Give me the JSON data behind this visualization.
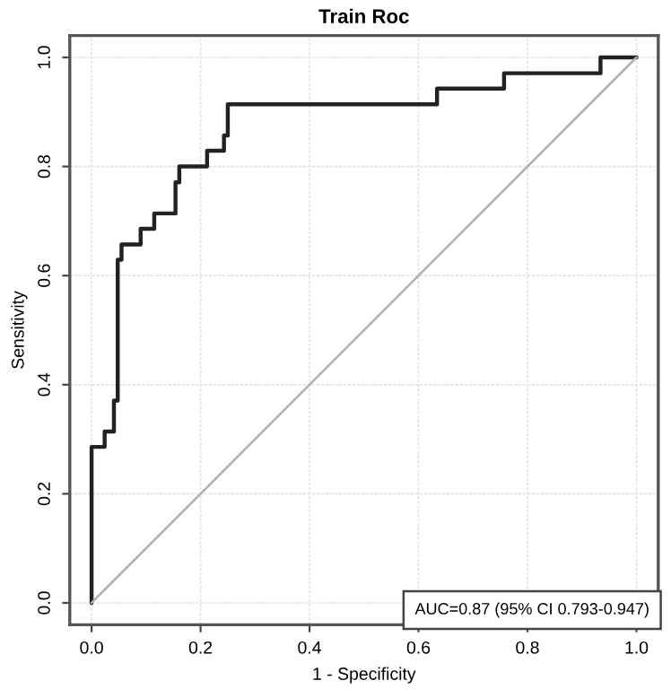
{
  "chart_data": {
    "type": "line",
    "title": "Train Roc",
    "xlabel": "1 - Specificity",
    "ylabel": "Sensitivity",
    "series": [
      {
        "color": "#222222",
        "x": [
          0,
          0,
          0.024,
          0.024,
          0.041,
          0.041,
          0.048,
          0.048,
          0.055,
          0.055,
          0.09,
          0.09,
          0.115,
          0.115,
          0.154,
          0.154,
          0.161,
          0.161,
          0.212,
          0.212,
          0.243,
          0.243,
          0.25,
          0.25,
          0.634,
          0.634,
          0.757,
          0.757,
          0.934,
          0.934,
          1.0
        ],
        "values": [
          0,
          0.286,
          0.286,
          0.314,
          0.314,
          0.371,
          0.371,
          0.629,
          0.629,
          0.657,
          0.657,
          0.686,
          0.686,
          0.714,
          0.714,
          0.771,
          0.771,
          0.8,
          0.8,
          0.829,
          0.829,
          0.857,
          0.857,
          0.914,
          0.914,
          0.943,
          0.943,
          0.971,
          0.971,
          1.0,
          1.0
        ]
      },
      {
        "color": "#b0b0b0",
        "x": [
          0,
          1
        ],
        "values": [
          0,
          1
        ]
      }
    ],
    "xlim": [
      -0.04,
      1.04
    ],
    "ylim": [
      -0.04,
      1.04
    ],
    "xticks": [
      {
        "value": 0,
        "label": "0.0"
      },
      {
        "value": 0.2,
        "label": "0.2"
      },
      {
        "value": 0.4,
        "label": "0.4"
      },
      {
        "value": 0.6,
        "label": "0.6"
      },
      {
        "value": 0.8,
        "label": "0.8"
      },
      {
        "value": 1,
        "label": "1.0"
      }
    ],
    "yticks": [
      {
        "value": 0,
        "label": "0.0"
      },
      {
        "value": 0.2,
        "label": "0.2"
      },
      {
        "value": 0.4,
        "label": "0.4"
      },
      {
        "value": 0.6,
        "label": "0.6"
      },
      {
        "value": 0.8,
        "label": "0.8"
      },
      {
        "value": 1,
        "label": "1.0"
      }
    ],
    "grid": true,
    "annotations": [
      "AUC=0.87 (95% CI 0.793-0.947)"
    ]
  }
}
